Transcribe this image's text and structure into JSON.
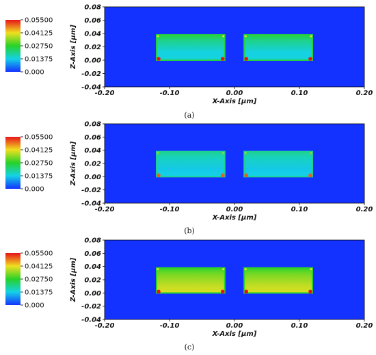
{
  "colorbar": {
    "ticks": [
      "0.05500",
      "0.04125",
      "0.02750",
      "0.01375",
      "0.000"
    ],
    "colors": [
      "#e8141a",
      "#f0e020",
      "#28d228",
      "#14d2e6",
      "#1432ff"
    ]
  },
  "chart_data": [
    {
      "type": "heatmap",
      "caption": "(a)",
      "xlabel": "X-Axis [μm]",
      "ylabel": "Z-Axis [μm]",
      "xlim": [
        -0.2,
        0.2
      ],
      "ylim": [
        -0.04,
        0.08
      ],
      "x_ticks": [
        "-0.20",
        "-0.10",
        "0.00",
        "0.10",
        "0.20"
      ],
      "y_ticks": [
        "0.08",
        "0.06",
        "0.04",
        "0.02",
        "0.00",
        "-0.02",
        "-0.04"
      ],
      "value_range": [
        0,
        0.055
      ],
      "background_value": 0,
      "regions": [
        {
          "x": [
            -0.12,
            -0.015
          ],
          "z": [
            0.0,
            0.038
          ],
          "interior_value": 0.014,
          "edge_value": 0.026,
          "corner_value": 0.055
        },
        {
          "x": [
            0.015,
            0.12
          ],
          "z": [
            0.0,
            0.038
          ],
          "interior_value": 0.014,
          "edge_value": 0.026,
          "corner_value": 0.055
        }
      ]
    },
    {
      "type": "heatmap",
      "caption": "(b)",
      "xlabel": "X-Axis [μm]",
      "ylabel": "Z-Axis [μm]",
      "xlim": [
        -0.2,
        0.2
      ],
      "ylim": [
        -0.04,
        0.08
      ],
      "x_ticks": [
        "-0.20",
        "-0.10",
        "0.00",
        "0.10",
        "0.20"
      ],
      "y_ticks": [
        "0.08",
        "0.06",
        "0.04",
        "0.02",
        "0.00",
        "-0.02",
        "-0.04"
      ],
      "value_range": [
        0,
        0.055
      ],
      "background_value": 0,
      "regions": [
        {
          "x": [
            -0.12,
            -0.015
          ],
          "z": [
            0.0,
            0.038
          ],
          "interior_value": 0.013,
          "edge_value": 0.02,
          "corner_value": 0.05
        },
        {
          "x": [
            0.015,
            0.12
          ],
          "z": [
            0.0,
            0.038
          ],
          "interior_value": 0.013,
          "edge_value": 0.02,
          "corner_value": 0.05
        }
      ]
    },
    {
      "type": "heatmap",
      "caption": "(c)",
      "xlabel": "X-Axis [μm]",
      "ylabel": "Z-Axis [μm]",
      "xlim": [
        -0.2,
        0.2
      ],
      "ylim": [
        -0.04,
        0.08
      ],
      "x_ticks": [
        "-0.20",
        "-0.10",
        "0.00",
        "0.10",
        "0.20"
      ],
      "y_ticks": [
        "0.08",
        "0.06",
        "0.04",
        "0.02",
        "0.00",
        "-0.02",
        "-0.04"
      ],
      "value_range": [
        0,
        0.055
      ],
      "background_value": 0,
      "regions": [
        {
          "x": [
            -0.12,
            -0.015
          ],
          "z": [
            0.0,
            0.038
          ],
          "interior_value": 0.038,
          "edge_value": 0.028,
          "corner_value": 0.055
        },
        {
          "x": [
            0.015,
            0.12
          ],
          "z": [
            0.0,
            0.038
          ],
          "interior_value": 0.038,
          "edge_value": 0.028,
          "corner_value": 0.055
        }
      ]
    }
  ]
}
